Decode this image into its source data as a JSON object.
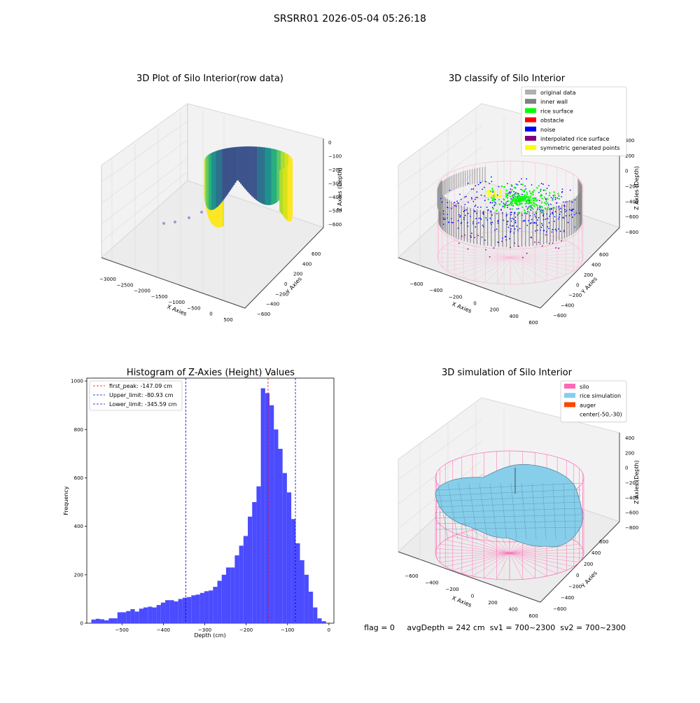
{
  "suptitle": "SRSRR01 2026-05-04 05:26:18",
  "status_line": "flag = 0     avgDepth = 242 cm  sv1 = 700~2300  sv2 = 700~2300",
  "colors": {
    "hist_bar": "#4B4BFF",
    "peak_line": "#FF0000",
    "limit_line": "#0000CC",
    "silo": "#FF69B4",
    "rice": "#87CEEB",
    "auger": "#FF4500"
  },
  "chart_data": [
    {
      "type": "scatter3d",
      "title": "3D Plot of Silo Interior(row data)",
      "xlabel": "X Axies",
      "ylabel": "Y Axies",
      "zlabel": "Z Axies (Depth)",
      "xticks": [
        "−3000",
        "−2500",
        "−2000",
        "−1500",
        "−1000",
        "−500",
        "0",
        "500"
      ],
      "yticks": [
        "−600",
        "−400",
        "−200",
        "0",
        "200",
        "400",
        "600"
      ],
      "zticks": [
        "0",
        "−100",
        "−200",
        "−300",
        "−400",
        "−500",
        "−600"
      ]
    },
    {
      "type": "scatter3d",
      "title": "3D classify of Silo Interior",
      "xlabel": "X Axies",
      "ylabel": "Y Axies",
      "zlabel": "Z Axies (Depth)",
      "xticks": [
        "−600",
        "−400",
        "−200",
        "0",
        "200",
        "400",
        "600"
      ],
      "yticks": [
        "−600",
        "−400",
        "−200",
        "0",
        "200",
        "400",
        "600"
      ],
      "zticks": [
        "400",
        "200",
        "0",
        "−200",
        "−400",
        "−600",
        "−800"
      ],
      "legend": [
        {
          "label": "original data",
          "color": "#B0B0B0"
        },
        {
          "label": "inner wall",
          "color": "#808080"
        },
        {
          "label": "rice surface",
          "color": "#00FF00"
        },
        {
          "label": "obstacle",
          "color": "#FF0000"
        },
        {
          "label": "noise",
          "color": "#0000FF"
        },
        {
          "label": "interpolated rice surface",
          "color": "#800080"
        },
        {
          "label": "symmetric generated points",
          "color": "#FFFF00"
        }
      ],
      "legend_loc": "top-right"
    },
    {
      "type": "bar",
      "title": "Histogram of Z-Axies (Height) Values",
      "xlabel": "Depth (cm)",
      "ylabel": "Frequency",
      "xlim": [
        -585,
        12
      ],
      "ylim": [
        0,
        1012
      ],
      "xticks": [
        -500,
        -400,
        -300,
        -200,
        -100,
        0
      ],
      "yticks": [
        0,
        200,
        400,
        600,
        800,
        1000
      ],
      "bin_width": 10.5,
      "bins_start": -574,
      "values": [
        15,
        18,
        16,
        12,
        20,
        20,
        45,
        45,
        50,
        58,
        48,
        60,
        65,
        68,
        65,
        75,
        85,
        95,
        95,
        90,
        100,
        105,
        108,
        115,
        118,
        125,
        132,
        135,
        150,
        175,
        200,
        230,
        230,
        280,
        320,
        360,
        440,
        500,
        565,
        970,
        950,
        900,
        800,
        720,
        620,
        540,
        430,
        330,
        260,
        200,
        130,
        65,
        20,
        8
      ],
      "vlines": [
        {
          "x": -147.09,
          "label": "first_peak: -147.09 cm",
          "color": "#FF0000"
        },
        {
          "x": -80.93,
          "label": "Upper_limit: -80.93 cm",
          "color": "#0000CC"
        },
        {
          "x": -345.59,
          "label": "Lower_limit: -345.59 cm",
          "color": "#0000CC"
        }
      ],
      "legend_loc": "top-left"
    },
    {
      "type": "surface3d",
      "title": "3D simulation of Silo Interior",
      "xlabel": "X Axies",
      "ylabel": "Y Axies",
      "zlabel": "Z Axies (Depth)",
      "xticks": [
        "−600",
        "−400",
        "−200",
        "0",
        "200",
        "400",
        "600"
      ],
      "yticks": [
        "−600",
        "−400",
        "−200",
        "0",
        "200",
        "400",
        "600"
      ],
      "zticks": [
        "400",
        "200",
        "0",
        "−200",
        "−400",
        "−600",
        "−800"
      ],
      "legend": [
        {
          "label": "silo",
          "color": "#FF69B4"
        },
        {
          "label": "rice simulation",
          "color": "#87CEEB"
        },
        {
          "label": "auger",
          "color": "#FF4500"
        },
        {
          "label": "center(-50,-30)",
          "color": ""
        }
      ],
      "legend_loc": "top-right"
    }
  ]
}
